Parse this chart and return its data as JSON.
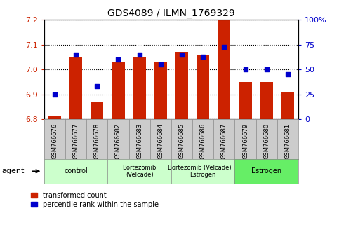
{
  "title": "GDS4089 / ILMN_1769329",
  "samples": [
    "GSM766676",
    "GSM766677",
    "GSM766678",
    "GSM766682",
    "GSM766683",
    "GSM766684",
    "GSM766685",
    "GSM766686",
    "GSM766687",
    "GSM766679",
    "GSM766680",
    "GSM766681"
  ],
  "transformed_count": [
    6.81,
    7.05,
    6.87,
    7.03,
    7.05,
    7.03,
    7.07,
    7.06,
    7.2,
    6.95,
    6.95,
    6.91
  ],
  "percentile_rank": [
    25,
    65,
    33,
    60,
    65,
    55,
    65,
    63,
    73,
    50,
    50,
    45
  ],
  "ylim_left": [
    6.8,
    7.2
  ],
  "ylim_right": [
    0,
    100
  ],
  "yticks_left": [
    6.8,
    6.9,
    7.0,
    7.1,
    7.2
  ],
  "yticks_right": [
    0,
    25,
    50,
    75,
    100
  ],
  "ytick_labels_right": [
    "0",
    "25",
    "50",
    "75",
    "100%"
  ],
  "bar_color": "#cc2200",
  "dot_color": "#0000cc",
  "bar_base": 6.8,
  "groups": [
    {
      "label": "control",
      "start": 0,
      "end": 3,
      "color": "#ccffcc"
    },
    {
      "label": "Bortezomib\n(Velcade)",
      "start": 3,
      "end": 6,
      "color": "#ccffcc"
    },
    {
      "label": "Bortezomib (Velcade) +\nEstrogen",
      "start": 6,
      "end": 9,
      "color": "#ccffcc"
    },
    {
      "label": "Estrogen",
      "start": 9,
      "end": 12,
      "color": "#66ee66"
    }
  ],
  "agent_label": "agent",
  "bg_color": "#ffffff",
  "grid_color": "#000000",
  "bar_width": 0.6,
  "title_fontsize": 10,
  "tick_fontsize": 8,
  "label_color_left": "#cc2200",
  "label_color_right": "#0000cc",
  "sample_box_color": "#cccccc"
}
